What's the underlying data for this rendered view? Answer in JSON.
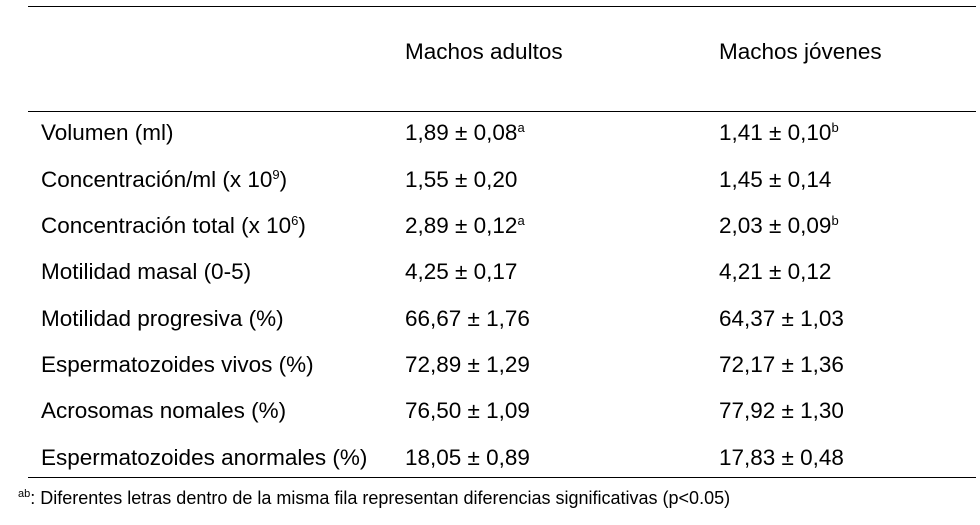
{
  "header": {
    "col1": "Machos adultos",
    "col2": "Machos jóvenes"
  },
  "rows": [
    {
      "label": "Volumen (ml)",
      "label_sup": "",
      "label_end": "",
      "v1": "1,89 ± 0,08",
      "v1_sup": "a",
      "v2": "1,41 ± 0,10",
      "v2_sup": "b"
    },
    {
      "label": "Concentración/ml (x 10",
      "label_sup": "9",
      "label_end": ")",
      "v1": "1,55 ± 0,20",
      "v1_sup": "",
      "v2": "1,45 ± 0,14",
      "v2_sup": ""
    },
    {
      "label": "Concentración total  (x 10",
      "label_sup": "6",
      "label_end": ")",
      "v1": "2,89 ± 0,12",
      "v1_sup": "a",
      "v2": "2,03 ± 0,09",
      "v2_sup": "b"
    },
    {
      "label": "Motilidad masal (0-5)",
      "label_sup": "",
      "label_end": "",
      "v1": "4,25 ± 0,17",
      "v1_sup": "",
      "v2": "4,21 ± 0,12",
      "v2_sup": ""
    },
    {
      "label": "Motilidad progresiva (%)",
      "label_sup": "",
      "label_end": "",
      "v1": "66,67 ± 1,76",
      "v1_sup": "",
      "v2": "64,37 ± 1,03",
      "v2_sup": ""
    },
    {
      "label": "Espermatozoides vivos (%)",
      "label_sup": "",
      "label_end": "",
      "v1": "72,89 ± 1,29",
      "v1_sup": "",
      "v2": "72,17 ± 1,36",
      "v2_sup": ""
    },
    {
      "label": "Acrosomas nomales (%)",
      "label_sup": "",
      "label_end": "",
      "v1": "76,50 ± 1,09",
      "v1_sup": "",
      "v2": "77,92 ± 1,30",
      "v2_sup": ""
    },
    {
      "label": "Espermatozoides anormales (%)",
      "label_sup": "",
      "label_end": "",
      "v1": "18,05 ± 0,89",
      "v1_sup": "",
      "v2": "17,83 ± 0,48",
      "v2_sup": ""
    }
  ],
  "footnote": {
    "sup": "ab",
    "text": ": Diferentes letras dentro de la misma fila representan diferencias significativas (p<0.05)"
  }
}
